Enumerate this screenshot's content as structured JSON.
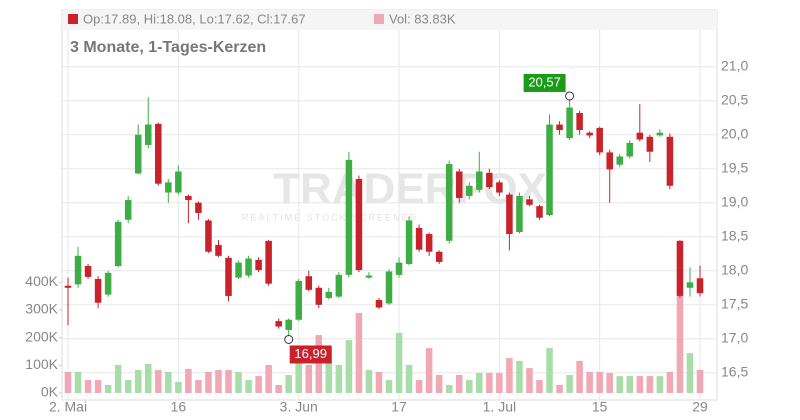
{
  "chart_data": {
    "type": "candlestick",
    "legend": [
      "Op:17.89, Hi:18.08, Lo:17.62, Cl:17.67",
      "Vol: 83.83K"
    ],
    "subtitle": "3 Monate, 1-Tages-Kerzen",
    "watermark": [
      "TRADERFOX",
      "REALTIME STOCK SCREENER"
    ],
    "annotations": {
      "high": "20,57",
      "low": "16,99"
    },
    "up_color": "#3fad46",
    "down_color": "#c8232b",
    "volume_up_color": "#a8dca8",
    "volume_down_color": "#f0a8b4",
    "grid": true,
    "categories": [
      "2. Mai",
      null,
      null,
      null,
      null,
      null,
      null,
      null,
      null,
      null,
      null,
      "16",
      null,
      null,
      null,
      null,
      null,
      null,
      null,
      null,
      null,
      null,
      null,
      "3. Jun",
      null,
      null,
      null,
      null,
      null,
      null,
      null,
      null,
      null,
      "17",
      null,
      null,
      null,
      null,
      null,
      null,
      null,
      null,
      null,
      "1. Jul",
      null,
      null,
      null,
      null,
      null,
      null,
      null,
      null,
      null,
      "15",
      null,
      null,
      null,
      null,
      null,
      null,
      null,
      null,
      null,
      "29"
    ],
    "open": [
      17.78,
      17.8,
      18.07,
      17.88,
      17.65,
      18.07,
      18.75,
      19.43,
      19.85,
      20.16,
      19.15,
      19.15,
      19.1,
      19.0,
      18.74,
      18.38,
      18.19,
      17.9,
      17.93,
      18.16,
      18.44,
      17.26,
      17.13,
      17.28,
      17.92,
      17.75,
      17.6,
      17.62,
      17.94,
      19.35,
      17.9,
      17.57,
      17.52,
      17.94,
      18.1,
      18.63,
      18.54,
      18.28,
      18.44,
      19.46,
      19.1,
      19.19,
      19.44,
      19.3,
      19.12,
      18.57,
      19.05,
      18.95,
      18.82,
      20.15,
      19.95,
      20.32,
      20.03,
      20.1,
      19.74,
      19.56,
      19.68,
      20.03,
      19.97,
      19.99,
      19.97,
      18.44,
      17.75,
      17.89
    ],
    "high": [
      17.9,
      18.35,
      18.1,
      17.92,
      18.0,
      18.75,
      19.1,
      20.15,
      20.55,
      20.18,
      19.35,
      19.55,
      19.12,
      19.02,
      18.76,
      18.45,
      18.22,
      18.15,
      18.22,
      18.2,
      18.45,
      17.3,
      17.3,
      17.88,
      18.0,
      17.78,
      17.75,
      17.98,
      19.75,
      19.4,
      17.98,
      17.6,
      18.02,
      18.2,
      18.8,
      18.68,
      18.56,
      18.3,
      19.62,
      19.5,
      19.3,
      19.75,
      19.5,
      19.33,
      19.15,
      19.15,
      19.1,
      18.97,
      20.3,
      20.2,
      20.57,
      20.35,
      20.05,
      20.12,
      19.78,
      19.72,
      19.92,
      20.45,
      20.0,
      20.08,
      20.02,
      18.45,
      18.05,
      18.08
    ],
    "low": [
      17.2,
      17.75,
      17.88,
      17.45,
      17.62,
      18.05,
      18.7,
      19.42,
      19.8,
      19.25,
      19.0,
      19.12,
      18.7,
      18.75,
      18.26,
      18.2,
      17.55,
      17.88,
      17.9,
      17.98,
      17.78,
      17.15,
      16.99,
      17.26,
      17.7,
      17.45,
      17.58,
      17.6,
      17.9,
      17.98,
      17.88,
      17.44,
      17.5,
      17.9,
      18.08,
      18.28,
      18.22,
      18.1,
      18.4,
      19.0,
      19.05,
      19.15,
      19.2,
      19.1,
      18.3,
      18.55,
      18.95,
      18.75,
      18.8,
      20.0,
      19.92,
      20.0,
      19.95,
      19.7,
      19.0,
      19.52,
      19.65,
      19.9,
      19.6,
      19.97,
      19.2,
      17.6,
      17.62,
      17.62
    ],
    "close": [
      17.75,
      18.22,
      17.91,
      17.53,
      17.97,
      18.72,
      19.04,
      20.0,
      20.15,
      19.28,
      19.3,
      19.46,
      19.04,
      18.85,
      18.28,
      18.22,
      17.63,
      18.12,
      18.18,
      18.01,
      17.81,
      17.18,
      17.28,
      17.85,
      17.72,
      17.5,
      17.69,
      17.94,
      19.63,
      18.01,
      17.93,
      17.46,
      17.99,
      18.12,
      18.74,
      18.31,
      18.28,
      18.13,
      19.57,
      19.07,
      19.25,
      19.46,
      19.23,
      19.15,
      18.54,
      19.1,
      18.97,
      18.78,
      20.15,
      20.07,
      20.4,
      20.07,
      19.99,
      19.74,
      19.49,
      19.68,
      19.88,
      19.93,
      19.75,
      20.03,
      19.25,
      17.63,
      17.83,
      17.67
    ],
    "volume": [
      76000,
      76000,
      47000,
      47000,
      29000,
      101000,
      47000,
      83000,
      105000,
      83000,
      76000,
      40000,
      87000,
      47000,
      76000,
      83000,
      83000,
      76000,
      47000,
      61000,
      101000,
      29000,
      65000,
      137000,
      101000,
      209000,
      155000,
      101000,
      191000,
      289000,
      83000,
      76000,
      47000,
      217000,
      101000,
      47000,
      162000,
      65000,
      29000,
      65000,
      47000,
      72000,
      72000,
      72000,
      126000,
      116000,
      90000,
      47000,
      162000,
      29000,
      65000,
      116000,
      76000,
      76000,
      72000,
      61000,
      61000,
      61000,
      61000,
      61000,
      76000,
      350000,
      144000,
      83830
    ],
    "ylim": [
      16.1,
      21.54
    ],
    "yticks": [
      {
        "value": 16.5,
        "label": "16,5"
      },
      {
        "value": 17,
        "label": "17,0"
      },
      {
        "value": 17.5,
        "label": "17,5"
      },
      {
        "value": 18,
        "label": "18,0"
      },
      {
        "value": 18.5,
        "label": "18,5"
      },
      {
        "value": 19,
        "label": "19,0"
      },
      {
        "value": 19.5,
        "label": "19,5"
      },
      {
        "value": 20,
        "label": "20,0"
      },
      {
        "value": 20.5,
        "label": "20,5"
      },
      {
        "value": 21,
        "label": "21,0"
      }
    ],
    "y2lim": [
      0,
      1310000
    ],
    "y2ticks": [
      {
        "value": 0,
        "label": "0K"
      },
      {
        "value": 100000,
        "label": "100K"
      },
      {
        "value": 200000,
        "label": "200K"
      },
      {
        "value": 300000,
        "label": "300K"
      },
      {
        "value": 400000,
        "label": "400K"
      }
    ]
  }
}
